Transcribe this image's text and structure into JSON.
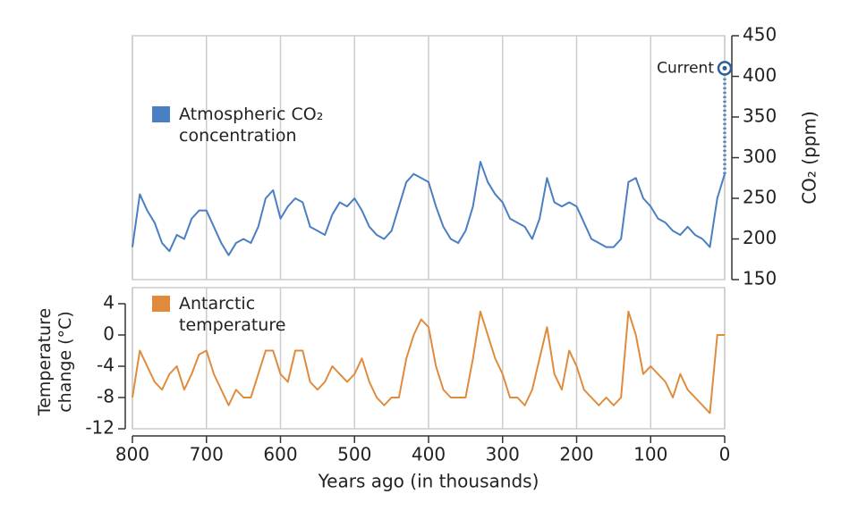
{
  "chart_data": [
    {
      "type": "line",
      "ylabel": "CO₂ (ppm)",
      "yaxis_side": "right",
      "x": [
        800,
        790,
        780,
        770,
        760,
        750,
        740,
        730,
        720,
        710,
        700,
        690,
        680,
        670,
        660,
        650,
        640,
        630,
        620,
        610,
        600,
        590,
        580,
        570,
        560,
        550,
        540,
        530,
        520,
        510,
        500,
        490,
        480,
        470,
        460,
        450,
        440,
        430,
        420,
        410,
        400,
        390,
        380,
        370,
        360,
        350,
        340,
        330,
        320,
        310,
        300,
        290,
        280,
        270,
        260,
        250,
        240,
        230,
        220,
        210,
        200,
        190,
        180,
        170,
        160,
        150,
        140,
        130,
        120,
        110,
        100,
        90,
        80,
        70,
        60,
        50,
        40,
        30,
        20,
        10,
        0
      ],
      "series": [
        {
          "name": "Atmospheric CO₂ concentration",
          "color": "#4a7fc1",
          "values": [
            190,
            255,
            235,
            220,
            195,
            185,
            205,
            200,
            225,
            235,
            235,
            215,
            195,
            180,
            195,
            200,
            195,
            215,
            250,
            260,
            225,
            240,
            250,
            245,
            215,
            210,
            205,
            230,
            245,
            240,
            250,
            235,
            215,
            205,
            200,
            210,
            240,
            270,
            280,
            275,
            270,
            240,
            215,
            200,
            195,
            210,
            240,
            295,
            270,
            255,
            245,
            225,
            220,
            215,
            200,
            225,
            275,
            245,
            240,
            245,
            240,
            220,
            200,
            195,
            190,
            190,
            200,
            270,
            275,
            250,
            240,
            225,
            220,
            210,
            205,
            215,
            205,
            200,
            190,
            250,
            280
          ]
        }
      ],
      "current": {
        "label": "Current",
        "x": 0,
        "value": 410
      },
      "xlim": [
        800,
        0
      ],
      "xticks": [
        800,
        700,
        600,
        500,
        400,
        300,
        200,
        100,
        0
      ],
      "ylim": [
        150,
        450
      ],
      "yticks": [
        150,
        200,
        250,
        300,
        350,
        400,
        450
      ],
      "grid": true
    },
    {
      "type": "line",
      "ylabel": "Temperature change (°C)",
      "xlabel": "Years ago (in thousands)",
      "yaxis_side": "left",
      "x": [
        800,
        790,
        780,
        770,
        760,
        750,
        740,
        730,
        720,
        710,
        700,
        690,
        680,
        670,
        660,
        650,
        640,
        630,
        620,
        610,
        600,
        590,
        580,
        570,
        560,
        550,
        540,
        530,
        520,
        510,
        500,
        490,
        480,
        470,
        460,
        450,
        440,
        430,
        420,
        410,
        400,
        390,
        380,
        370,
        360,
        350,
        340,
        330,
        320,
        310,
        300,
        290,
        280,
        270,
        260,
        250,
        240,
        230,
        220,
        210,
        200,
        190,
        180,
        170,
        160,
        150,
        140,
        130,
        120,
        110,
        100,
        90,
        80,
        70,
        60,
        50,
        40,
        30,
        20,
        10,
        0
      ],
      "series": [
        {
          "name": "Antarctic temperature",
          "color": "#e08a3c",
          "values": [
            -8,
            -2,
            -4,
            -6,
            -7,
            -5,
            -4,
            -7,
            -5,
            -2.5,
            -2,
            -5,
            -7,
            -9,
            -7,
            -8,
            -8,
            -5,
            -2,
            -2,
            -5,
            -6,
            -2,
            -2,
            -6,
            -7,
            -6,
            -4,
            -5,
            -6,
            -5,
            -3,
            -6,
            -8,
            -9,
            -8,
            -8,
            -3,
            0,
            2,
            1,
            -4,
            -7,
            -8,
            -8,
            -8,
            -3,
            3,
            0,
            -3,
            -5,
            -8,
            -8,
            -9,
            -7,
            -3,
            1,
            -5,
            -7,
            -2,
            -4,
            -7,
            -8,
            -9,
            -8,
            -9,
            -8,
            3,
            0,
            -5,
            -4,
            -5,
            -6,
            -8,
            -5,
            -7,
            -8,
            -9,
            -10,
            0,
            0
          ]
        }
      ],
      "xlim": [
        800,
        0
      ],
      "xticks": [
        800,
        700,
        600,
        500,
        400,
        300,
        200,
        100,
        0
      ],
      "ylim": [
        -12,
        4
      ],
      "yticks": [
        -12,
        -8,
        -4,
        0,
        4
      ],
      "grid": true
    }
  ]
}
